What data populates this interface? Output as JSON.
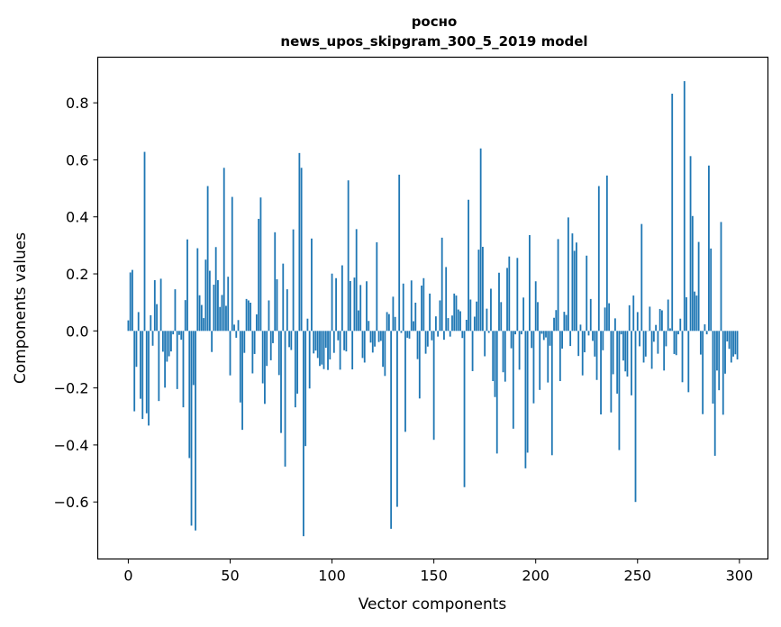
{
  "chart_data": {
    "type": "bar",
    "title_line1": "росно",
    "title_line2": "news_upos_skipgram_300_5_2019 model",
    "xlabel": "Vector components",
    "ylabel": "Components values",
    "xlim": [
      -15,
      314
    ],
    "ylim": [
      -0.8,
      0.96
    ],
    "x_ticks": [
      0,
      50,
      100,
      150,
      200,
      250,
      300
    ],
    "x_tick_labels": [
      "0",
      "50",
      "100",
      "150",
      "200",
      "250",
      "300"
    ],
    "y_ticks": [
      -0.6,
      -0.4,
      -0.2,
      0.0,
      0.2,
      0.4,
      0.6,
      0.8
    ],
    "y_tick_labels": [
      "−0.6",
      "−0.4",
      "−0.2",
      "0.0",
      "0.2",
      "0.4",
      "0.6",
      "0.8"
    ],
    "bar_color": "#1f77b4",
    "values": [
      0.037,
      0.205,
      0.214,
      -0.282,
      -0.126,
      0.066,
      -0.238,
      -0.309,
      0.628,
      -0.289,
      -0.332,
      0.055,
      -0.052,
      0.178,
      0.094,
      -0.246,
      0.183,
      -0.073,
      -0.199,
      -0.108,
      -0.089,
      -0.072,
      -0.012,
      0.146,
      -0.204,
      -0.014,
      -0.031,
      -0.268,
      0.108,
      0.321,
      -0.446,
      -0.683,
      -0.19,
      -0.7,
      0.29,
      0.125,
      0.091,
      0.045,
      0.25,
      0.508,
      0.211,
      -0.074,
      0.162,
      0.294,
      0.178,
      0.084,
      0.126,
      0.572,
      0.088,
      0.19,
      -0.156,
      0.47,
      0.022,
      -0.024,
      0.038,
      -0.251,
      -0.347,
      -0.077,
      0.112,
      0.107,
      0.099,
      -0.149,
      -0.081,
      0.058,
      0.393,
      0.468,
      -0.184,
      -0.256,
      -0.123,
      0.107,
      -0.103,
      -0.043,
      0.346,
      0.181,
      -0.155,
      -0.358,
      0.236,
      -0.476,
      0.146,
      -0.057,
      -0.067,
      0.356,
      -0.268,
      -0.22,
      0.624,
      0.572,
      -0.72,
      -0.404,
      0.043,
      -0.202,
      0.324,
      -0.079,
      -0.069,
      -0.095,
      -0.123,
      -0.118,
      -0.134,
      -0.059,
      -0.137,
      -0.1,
      0.201,
      -0.077,
      0.185,
      -0.033,
      -0.136,
      0.23,
      -0.068,
      -0.072,
      0.528,
      0.175,
      -0.135,
      0.187,
      0.357,
      0.072,
      0.161,
      -0.095,
      -0.111,
      0.174,
      0.035,
      -0.041,
      -0.076,
      -0.055,
      0.311,
      -0.039,
      -0.035,
      -0.126,
      -0.158,
      0.066,
      0.059,
      -0.694,
      0.12,
      0.049,
      -0.617,
      0.548,
      -0.007,
      0.166,
      -0.354,
      -0.024,
      -0.027,
      0.177,
      0.034,
      0.099,
      -0.099,
      -0.237,
      0.159,
      0.185,
      -0.08,
      -0.055,
      0.131,
      -0.033,
      -0.382,
      0.051,
      -0.02,
      0.107,
      0.327,
      -0.031,
      0.224,
      0.045,
      -0.02,
      0.054,
      0.131,
      0.124,
      0.075,
      0.069,
      -0.025,
      -0.548,
      0.039,
      0.46,
      0.11,
      -0.141,
      0.05,
      0.103,
      0.285,
      0.64,
      0.295,
      -0.089,
      0.078,
      -0.007,
      0.148,
      -0.176,
      -0.232,
      -0.43,
      0.204,
      0.101,
      -0.145,
      -0.178,
      0.221,
      0.261,
      -0.061,
      -0.343,
      -0.012,
      0.256,
      -0.136,
      -0.012,
      0.117,
      -0.482,
      -0.427,
      0.336,
      -0.06,
      -0.254,
      0.174,
      0.101,
      -0.207,
      -0.01,
      -0.032,
      -0.023,
      -0.181,
      -0.052,
      -0.436,
      0.046,
      0.073,
      0.322,
      -0.176,
      -0.062,
      0.067,
      0.056,
      0.398,
      -0.053,
      0.342,
      0.281,
      0.31,
      -0.088,
      0.022,
      -0.156,
      -0.075,
      0.264,
      -0.016,
      0.112,
      -0.035,
      -0.09,
      -0.172,
      0.508,
      -0.293,
      -0.068,
      0.082,
      0.545,
      0.097,
      -0.286,
      -0.152,
      0.044,
      -0.22,
      -0.418,
      -0.012,
      -0.104,
      -0.142,
      -0.16,
      0.09,
      -0.226,
      0.124,
      -0.6,
      0.066,
      -0.054,
      0.375,
      -0.111,
      -0.09,
      0.001,
      0.085,
      -0.133,
      -0.038,
      0.021,
      -0.08,
      0.077,
      0.072,
      -0.139,
      -0.054,
      0.11,
      0.009,
      0.832,
      -0.081,
      -0.085,
      -0.012,
      0.043,
      -0.18,
      0.876,
      0.118,
      -0.215,
      0.613,
      0.403,
      0.138,
      0.124,
      0.312,
      -0.083,
      -0.292,
      0.023,
      -0.012,
      0.58,
      0.289,
      -0.255,
      -0.438,
      -0.139,
      -0.208,
      0.382,
      -0.294,
      -0.15,
      -0.037,
      -0.063,
      -0.111,
      -0.09,
      -0.082,
      -0.1
    ]
  }
}
